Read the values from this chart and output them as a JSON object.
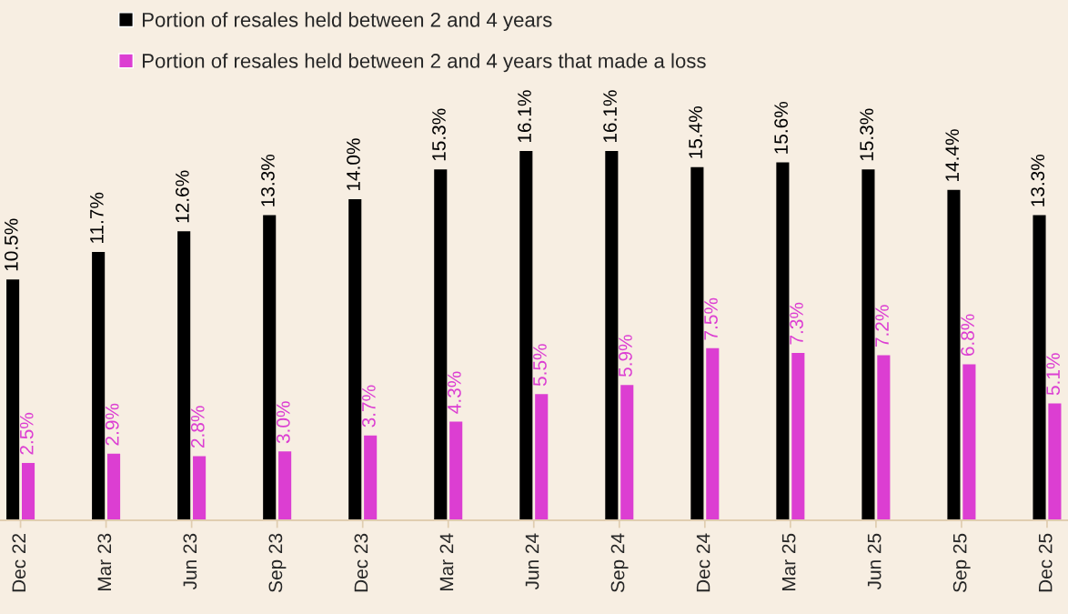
{
  "chart_data": {
    "type": "bar",
    "categories": [
      "Dec 22",
      "Mar 23",
      "Jun 23",
      "Sep 23",
      "Dec 23",
      "Mar 24",
      "Jun 24",
      "Sep 24",
      "Dec 24",
      "Mar 25",
      "Jun 25",
      "Sep 25",
      "Dec 25"
    ],
    "series": [
      {
        "name": "Portion of resales held between 2 and 4 years",
        "color": "#000000",
        "values": [
          10.5,
          11.7,
          12.6,
          13.3,
          14.0,
          15.3,
          16.1,
          16.1,
          15.4,
          15.6,
          15.3,
          14.4,
          13.3
        ],
        "value_labels": [
          "10.5%",
          "11.7%",
          "12.6%",
          "13.3%",
          "14.0%",
          "15.3%",
          "16.1%",
          "16.1%",
          "15.4%",
          "15.6%",
          "15.3%",
          "14.4%",
          "13.3%"
        ]
      },
      {
        "name": "Portion of resales held between 2 and 4 years that made a loss",
        "color": "#dc3ed2",
        "values": [
          2.5,
          2.9,
          2.8,
          3.0,
          3.7,
          4.3,
          5.5,
          5.9,
          7.5,
          7.3,
          7.2,
          6.8,
          5.1
        ],
        "value_labels": [
          "2.5%",
          "2.9%",
          "2.8%",
          "3.0%",
          "3.7%",
          "4.3%",
          "5.5%",
          "5.9%",
          "7.5%",
          "7.3%",
          "7.2%",
          "6.8%",
          "5.1%"
        ]
      }
    ],
    "legend": "top left",
    "grid": false,
    "tick_labels": "x"
  }
}
